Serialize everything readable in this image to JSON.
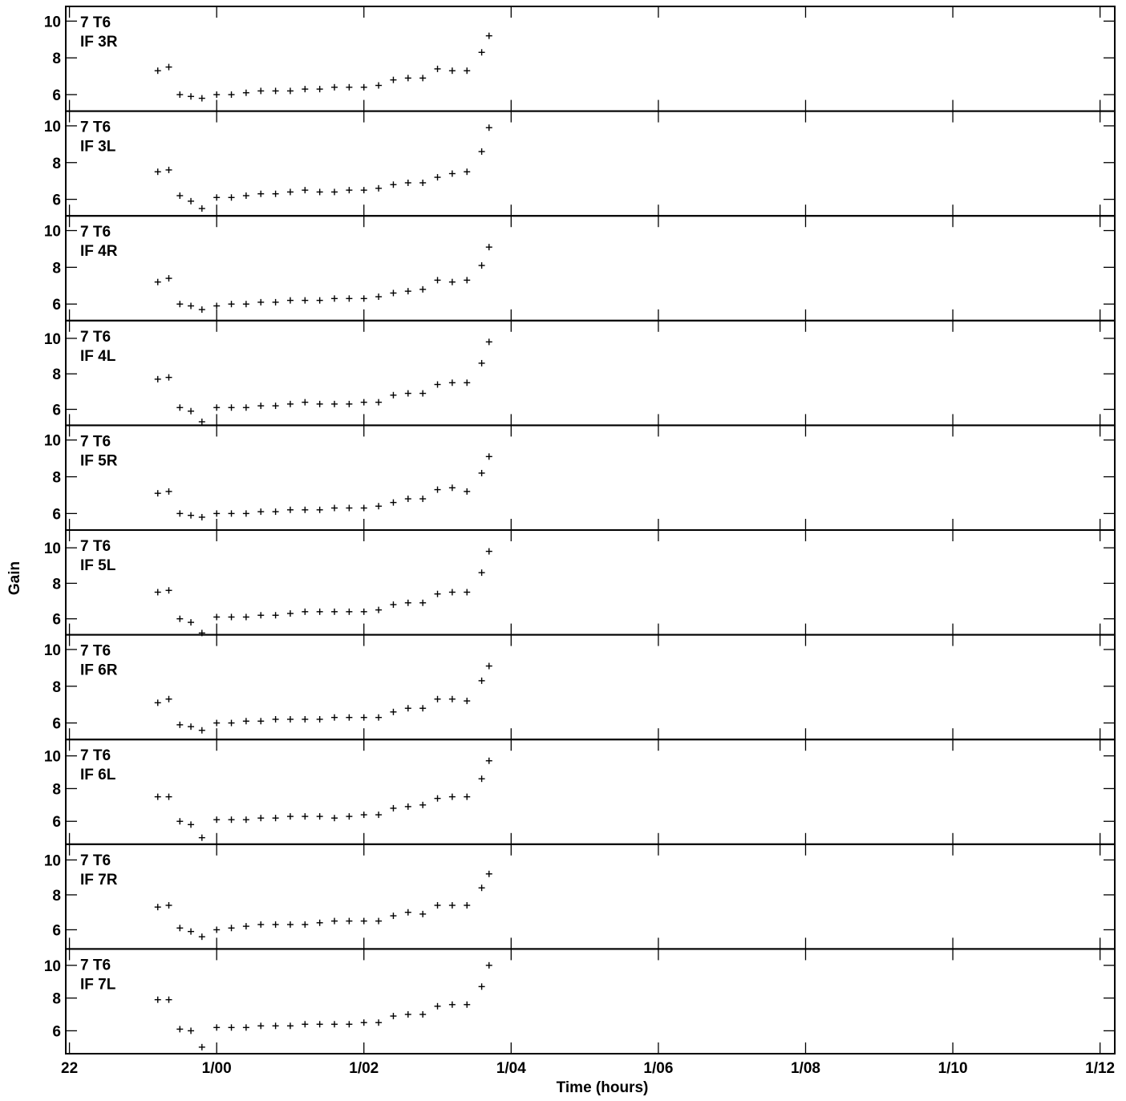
{
  "chart_data": {
    "type": "scatter",
    "title": "",
    "xlabel": "Time (hours)",
    "ylabel": "Gain",
    "x_tick_labels": [
      "22",
      "1/00",
      "1/02",
      "1/04",
      "1/06",
      "1/08",
      "1/10",
      "1/12"
    ],
    "x_ticks_hours": [
      22,
      24,
      26,
      28,
      30,
      32,
      34,
      36
    ],
    "xlim_hours": [
      21.95,
      36.2
    ],
    "y_tick_labels": [
      "6",
      "8",
      "10"
    ],
    "grid": false,
    "marker": "+",
    "panels": [
      {
        "label_1": "7 T6",
        "label_2": "IF 3R",
        "ylim": [
          5.1,
          10.8
        ],
        "x": [
          23.2,
          23.35,
          23.5,
          23.65,
          23.8,
          24.0,
          24.2,
          24.4,
          24.6,
          24.8,
          25.0,
          25.2,
          25.4,
          25.6,
          25.8,
          26.0,
          26.2,
          26.4,
          26.6,
          26.8,
          27.0,
          27.2,
          27.4,
          27.6,
          27.7
        ],
        "y": [
          7.3,
          7.5,
          6.0,
          5.9,
          5.8,
          6.0,
          6.0,
          6.1,
          6.2,
          6.2,
          6.2,
          6.3,
          6.3,
          6.4,
          6.4,
          6.4,
          6.5,
          6.8,
          6.9,
          6.9,
          7.4,
          7.3,
          7.3,
          8.3,
          9.2
        ]
      },
      {
        "label_1": "7 T6",
        "label_2": "IF 3L",
        "ylim": [
          5.1,
          10.8
        ],
        "x": [
          23.2,
          23.35,
          23.5,
          23.65,
          23.8,
          24.0,
          24.2,
          24.4,
          24.6,
          24.8,
          25.0,
          25.2,
          25.4,
          25.6,
          25.8,
          26.0,
          26.2,
          26.4,
          26.6,
          26.8,
          27.0,
          27.2,
          27.4,
          27.6,
          27.7
        ],
        "y": [
          7.5,
          7.6,
          6.2,
          5.9,
          5.5,
          6.1,
          6.1,
          6.2,
          6.3,
          6.3,
          6.4,
          6.5,
          6.4,
          6.4,
          6.5,
          6.5,
          6.6,
          6.8,
          6.9,
          6.9,
          7.2,
          7.4,
          7.5,
          8.6,
          9.9
        ]
      },
      {
        "label_1": "7 T6",
        "label_2": "IF 4R",
        "ylim": [
          5.1,
          10.8
        ],
        "x": [
          23.2,
          23.35,
          23.5,
          23.65,
          23.8,
          24.0,
          24.2,
          24.4,
          24.6,
          24.8,
          25.0,
          25.2,
          25.4,
          25.6,
          25.8,
          26.0,
          26.2,
          26.4,
          26.6,
          26.8,
          27.0,
          27.2,
          27.4,
          27.6,
          27.7
        ],
        "y": [
          7.2,
          7.4,
          6.0,
          5.9,
          5.7,
          5.9,
          6.0,
          6.0,
          6.1,
          6.1,
          6.2,
          6.2,
          6.2,
          6.3,
          6.3,
          6.3,
          6.4,
          6.6,
          6.7,
          6.8,
          7.3,
          7.2,
          7.3,
          8.1,
          9.1
        ]
      },
      {
        "label_1": "7 T6",
        "label_2": "IF 4L",
        "ylim": [
          5.1,
          11.0
        ],
        "x": [
          23.2,
          23.35,
          23.5,
          23.65,
          23.8,
          24.0,
          24.2,
          24.4,
          24.6,
          24.8,
          25.0,
          25.2,
          25.4,
          25.6,
          25.8,
          26.0,
          26.2,
          26.4,
          26.6,
          26.8,
          27.0,
          27.2,
          27.4,
          27.6,
          27.7
        ],
        "y": [
          7.7,
          7.8,
          6.1,
          5.9,
          5.3,
          6.1,
          6.1,
          6.1,
          6.2,
          6.2,
          6.3,
          6.4,
          6.3,
          6.3,
          6.3,
          6.4,
          6.4,
          6.8,
          6.9,
          6.9,
          7.4,
          7.5,
          7.5,
          8.6,
          9.8
        ]
      },
      {
        "label_1": "7 T6",
        "label_2": "IF 5R",
        "ylim": [
          5.1,
          10.8
        ],
        "x": [
          23.2,
          23.35,
          23.5,
          23.65,
          23.8,
          24.0,
          24.2,
          24.4,
          24.6,
          24.8,
          25.0,
          25.2,
          25.4,
          25.6,
          25.8,
          26.0,
          26.2,
          26.4,
          26.6,
          26.8,
          27.0,
          27.2,
          27.4,
          27.6,
          27.7
        ],
        "y": [
          7.1,
          7.2,
          6.0,
          5.9,
          5.8,
          6.0,
          6.0,
          6.0,
          6.1,
          6.1,
          6.2,
          6.2,
          6.2,
          6.3,
          6.3,
          6.3,
          6.4,
          6.6,
          6.8,
          6.8,
          7.3,
          7.4,
          7.2,
          8.2,
          9.1
        ]
      },
      {
        "label_1": "7 T6",
        "label_2": "IF 5L",
        "ylim": [
          5.1,
          11.0
        ],
        "x": [
          23.2,
          23.35,
          23.5,
          23.65,
          23.8,
          24.0,
          24.2,
          24.4,
          24.6,
          24.8,
          25.0,
          25.2,
          25.4,
          25.6,
          25.8,
          26.0,
          26.2,
          26.4,
          26.6,
          26.8,
          27.0,
          27.2,
          27.4,
          27.6,
          27.7
        ],
        "y": [
          7.5,
          7.6,
          6.0,
          5.8,
          5.2,
          6.1,
          6.1,
          6.1,
          6.2,
          6.2,
          6.3,
          6.4,
          6.4,
          6.4,
          6.4,
          6.4,
          6.5,
          6.8,
          6.9,
          6.9,
          7.4,
          7.5,
          7.5,
          8.6,
          9.8
        ]
      },
      {
        "label_1": "7 T6",
        "label_2": "IF 6R",
        "ylim": [
          5.1,
          10.8
        ],
        "x": [
          23.2,
          23.35,
          23.5,
          23.65,
          23.8,
          24.0,
          24.2,
          24.4,
          24.6,
          24.8,
          25.0,
          25.2,
          25.4,
          25.6,
          25.8,
          26.0,
          26.2,
          26.4,
          26.6,
          26.8,
          27.0,
          27.2,
          27.4,
          27.6,
          27.7
        ],
        "y": [
          7.1,
          7.3,
          5.9,
          5.8,
          5.6,
          6.0,
          6.0,
          6.1,
          6.1,
          6.2,
          6.2,
          6.2,
          6.2,
          6.3,
          6.3,
          6.3,
          6.3,
          6.6,
          6.8,
          6.8,
          7.3,
          7.3,
          7.2,
          8.3,
          9.1
        ]
      },
      {
        "label_1": "7 T6",
        "label_2": "IF 6L",
        "ylim": [
          4.6,
          11.0
        ],
        "x": [
          23.2,
          23.35,
          23.5,
          23.65,
          23.8,
          24.0,
          24.2,
          24.4,
          24.6,
          24.8,
          25.0,
          25.2,
          25.4,
          25.6,
          25.8,
          26.0,
          26.2,
          26.4,
          26.6,
          26.8,
          27.0,
          27.2,
          27.4,
          27.6,
          27.7
        ],
        "y": [
          7.5,
          7.5,
          6.0,
          5.8,
          5.0,
          6.1,
          6.1,
          6.1,
          6.2,
          6.2,
          6.3,
          6.3,
          6.3,
          6.2,
          6.3,
          6.4,
          6.4,
          6.8,
          6.9,
          7.0,
          7.4,
          7.5,
          7.5,
          8.6,
          9.7
        ]
      },
      {
        "label_1": "7 T6",
        "label_2": "IF 7R",
        "ylim": [
          4.9,
          10.9
        ],
        "x": [
          23.2,
          23.35,
          23.5,
          23.65,
          23.8,
          24.0,
          24.2,
          24.4,
          24.6,
          24.8,
          25.0,
          25.2,
          25.4,
          25.6,
          25.8,
          26.0,
          26.2,
          26.4,
          26.6,
          26.8,
          27.0,
          27.2,
          27.4,
          27.6,
          27.7
        ],
        "y": [
          7.3,
          7.4,
          6.1,
          5.9,
          5.6,
          6.0,
          6.1,
          6.2,
          6.3,
          6.3,
          6.3,
          6.3,
          6.4,
          6.5,
          6.5,
          6.5,
          6.5,
          6.8,
          7.0,
          6.9,
          7.4,
          7.4,
          7.4,
          8.4,
          9.2
        ]
      },
      {
        "label_1": "7 T6",
        "label_2": "IF 7L",
        "ylim": [
          4.6,
          11.0
        ],
        "x": [
          23.2,
          23.35,
          23.5,
          23.65,
          23.8,
          24.0,
          24.2,
          24.4,
          24.6,
          24.8,
          25.0,
          25.2,
          25.4,
          25.6,
          25.8,
          26.0,
          26.2,
          26.4,
          26.6,
          26.8,
          27.0,
          27.2,
          27.4,
          27.6,
          27.7
        ],
        "y": [
          7.9,
          7.9,
          6.1,
          6.0,
          5.0,
          6.2,
          6.2,
          6.2,
          6.3,
          6.3,
          6.3,
          6.4,
          6.4,
          6.4,
          6.4,
          6.5,
          6.5,
          6.9,
          7.0,
          7.0,
          7.5,
          7.6,
          7.6,
          8.7,
          10.0
        ]
      }
    ]
  }
}
